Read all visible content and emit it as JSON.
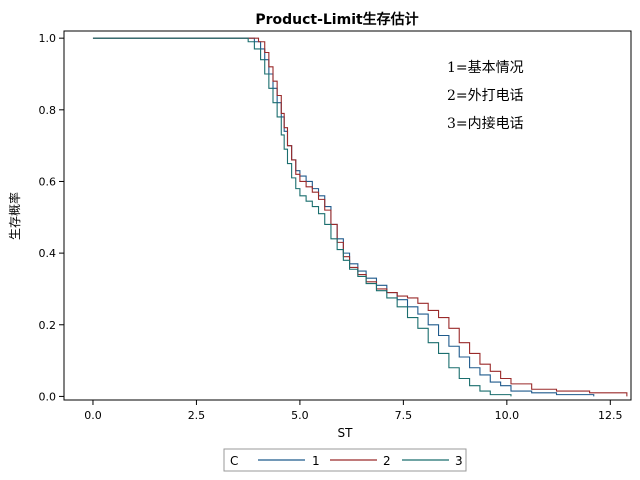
{
  "chart_data": {
    "type": "line",
    "title": "Product-Limit生存估计",
    "xlabel": "ST",
    "ylabel": "生存概率",
    "xlim": [
      -0.7,
      13.0
    ],
    "ylim": [
      -0.01,
      1.02
    ],
    "xticks": [
      0.0,
      2.5,
      5.0,
      7.5,
      10.0,
      12.5
    ],
    "xtick_labels": [
      "0.0",
      "2.5",
      "5.0",
      "7.5",
      "10.0",
      "12.5"
    ],
    "yticks": [
      0.0,
      0.2,
      0.4,
      0.6,
      0.8,
      1.0
    ],
    "ytick_labels": [
      "0.0",
      "0.2",
      "0.4",
      "0.6",
      "0.8",
      "1.0"
    ],
    "grid": false,
    "step": true,
    "annotations": [
      "1=基本情况",
      "2=外打电话",
      "3=内接电话"
    ],
    "legend": {
      "title": "C",
      "placement": "bottom",
      "entries": [
        "1",
        "2",
        "3"
      ]
    },
    "series": [
      {
        "name": "1",
        "color": "#1f5a8c",
        "x": [
          0.0,
          3.9,
          4.05,
          4.15,
          4.25,
          4.35,
          4.45,
          4.55,
          4.62,
          4.7,
          4.8,
          4.9,
          5.0,
          5.15,
          5.3,
          5.45,
          5.6,
          5.75,
          5.9,
          6.05,
          6.2,
          6.4,
          6.6,
          6.85,
          7.1,
          7.35,
          7.6,
          7.85,
          8.1,
          8.35,
          8.6,
          8.85,
          9.1,
          9.35,
          9.6,
          9.85,
          10.1,
          10.6,
          11.2,
          12.1
        ],
        "y": [
          1.0,
          0.99,
          0.97,
          0.94,
          0.9,
          0.86,
          0.82,
          0.78,
          0.74,
          0.7,
          0.66,
          0.63,
          0.615,
          0.6,
          0.58,
          0.56,
          0.53,
          0.48,
          0.44,
          0.4,
          0.37,
          0.35,
          0.33,
          0.31,
          0.29,
          0.27,
          0.25,
          0.23,
          0.2,
          0.17,
          0.14,
          0.11,
          0.08,
          0.06,
          0.04,
          0.03,
          0.015,
          0.01,
          0.005,
          0.0
        ]
      },
      {
        "name": "2",
        "color": "#9a2a2a",
        "x": [
          0.0,
          4.0,
          4.15,
          4.25,
          4.35,
          4.45,
          4.55,
          4.62,
          4.7,
          4.8,
          4.9,
          5.0,
          5.15,
          5.3,
          5.45,
          5.6,
          5.75,
          5.9,
          6.05,
          6.2,
          6.4,
          6.6,
          6.85,
          7.1,
          7.35,
          7.6,
          7.85,
          8.1,
          8.35,
          8.6,
          8.85,
          9.1,
          9.35,
          9.6,
          9.85,
          10.1,
          10.6,
          11.2,
          12.0,
          12.9
        ],
        "y": [
          1.0,
          0.99,
          0.96,
          0.92,
          0.88,
          0.84,
          0.79,
          0.75,
          0.7,
          0.66,
          0.62,
          0.6,
          0.585,
          0.57,
          0.55,
          0.52,
          0.48,
          0.43,
          0.39,
          0.36,
          0.34,
          0.32,
          0.3,
          0.29,
          0.28,
          0.275,
          0.26,
          0.24,
          0.22,
          0.19,
          0.15,
          0.12,
          0.09,
          0.07,
          0.05,
          0.035,
          0.02,
          0.015,
          0.01,
          0.0
        ]
      },
      {
        "name": "3",
        "color": "#1a6e6e",
        "x": [
          0.0,
          3.75,
          3.9,
          4.05,
          4.15,
          4.25,
          4.35,
          4.45,
          4.55,
          4.62,
          4.7,
          4.8,
          4.9,
          5.0,
          5.15,
          5.3,
          5.45,
          5.6,
          5.75,
          5.9,
          6.05,
          6.2,
          6.4,
          6.6,
          6.85,
          7.1,
          7.35,
          7.6,
          7.85,
          8.1,
          8.35,
          8.6,
          8.85,
          9.1,
          9.35,
          9.6,
          10.1
        ],
        "y": [
          1.0,
          0.99,
          0.97,
          0.94,
          0.9,
          0.86,
          0.82,
          0.78,
          0.73,
          0.69,
          0.65,
          0.61,
          0.58,
          0.56,
          0.545,
          0.53,
          0.51,
          0.48,
          0.44,
          0.41,
          0.38,
          0.355,
          0.335,
          0.315,
          0.295,
          0.275,
          0.25,
          0.22,
          0.19,
          0.15,
          0.12,
          0.08,
          0.05,
          0.03,
          0.015,
          0.005,
          0.0
        ]
      }
    ]
  }
}
